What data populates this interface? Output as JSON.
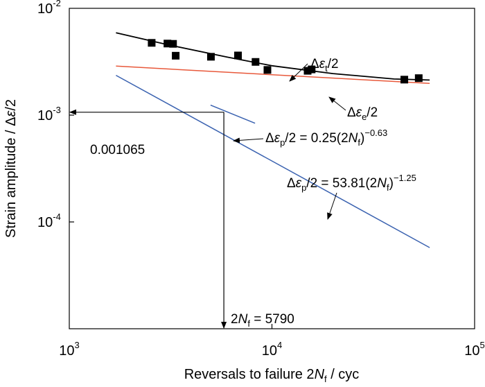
{
  "chart_data": {
    "type": "scatter",
    "x_scale": "log",
    "y_scale": "log",
    "xlim": [
      1000,
      100000
    ],
    "ylim": [
      1e-05,
      0.01
    ],
    "xlabel": {
      "pre": "Reversals to failure 2",
      "italic": "N",
      "sub": "f",
      "post": " / cyc"
    },
    "ylabel": {
      "pre": "Strain amplitude / Δ",
      "italic": "ε",
      "post": "/2"
    },
    "x_ticks": [
      {
        "base": "10",
        "exp": "3",
        "value": 1000
      },
      {
        "base": "10",
        "exp": "4",
        "value": 10000
      },
      {
        "base": "10",
        "exp": "5",
        "value": 100000
      }
    ],
    "y_ticks": [
      {
        "base": "10",
        "exp": "-2",
        "value": 0.01
      },
      {
        "base": "10",
        "exp": "-3",
        "value": 0.001
      },
      {
        "base": "10",
        "exp": "-4",
        "value": 0.0001
      }
    ],
    "points": [
      [
        2550,
        0.00475
      ],
      [
        3050,
        0.00468
      ],
      [
        3250,
        0.00465
      ],
      [
        3350,
        0.0036
      ],
      [
        5000,
        0.00352
      ],
      [
        6800,
        0.00362
      ],
      [
        8300,
        0.00315
      ],
      [
        9500,
        0.00265
      ],
      [
        15000,
        0.0026
      ],
      [
        15700,
        0.00268
      ],
      [
        45000,
        0.00215
      ],
      [
        53000,
        0.00222
      ]
    ],
    "series": [
      {
        "color": "#000000",
        "x": [
          1700,
          3000,
          6000,
          10000,
          20000,
          40000,
          60000
        ],
        "y": [
          0.0059,
          0.0046,
          0.0035,
          0.0029,
          0.00245,
          0.00218,
          0.00213
        ]
      },
      {
        "color": "#e8583a",
        "x": [
          1700,
          60000
        ],
        "y": [
          0.00288,
          0.00198
        ]
      },
      {
        "color": "#3a62b0",
        "x": [
          1700,
          60000
        ],
        "y": [
          0.00236,
          5.75e-05
        ]
      },
      {
        "color": "#3a62b0",
        "x": [
          4980,
          8250
        ],
        "y": [
          0.00124,
          0.00084
        ]
      }
    ],
    "reference": {
      "x": 5790,
      "y": 0.001065
    },
    "annotations": {
      "total": {
        "pre": "Δ",
        "italic": "ε",
        "sub": "t",
        "post": "/2"
      },
      "elastic": {
        "pre": "Δ",
        "italic": "ε",
        "sub": "e",
        "post": "/2"
      },
      "plastic_fit1": {
        "pre": "Δ",
        "italic": "ε",
        "sub": "p",
        "mid": "/2 = 0.25(2",
        "n": "N",
        "nsub": "f",
        "close": ")",
        "exp": "−0.63"
      },
      "plastic_fit2": {
        "pre": "Δ",
        "italic": "ε",
        "sub": "p",
        "mid": "/2 = 53.81(2",
        "n": "N",
        "nsub": "f",
        "close": ")",
        "exp": "−1.25"
      },
      "y_value": "0.001065",
      "x_value": {
        "pre": "2",
        "italic": "N",
        "sub": "f",
        "post": " = 5790"
      }
    }
  }
}
